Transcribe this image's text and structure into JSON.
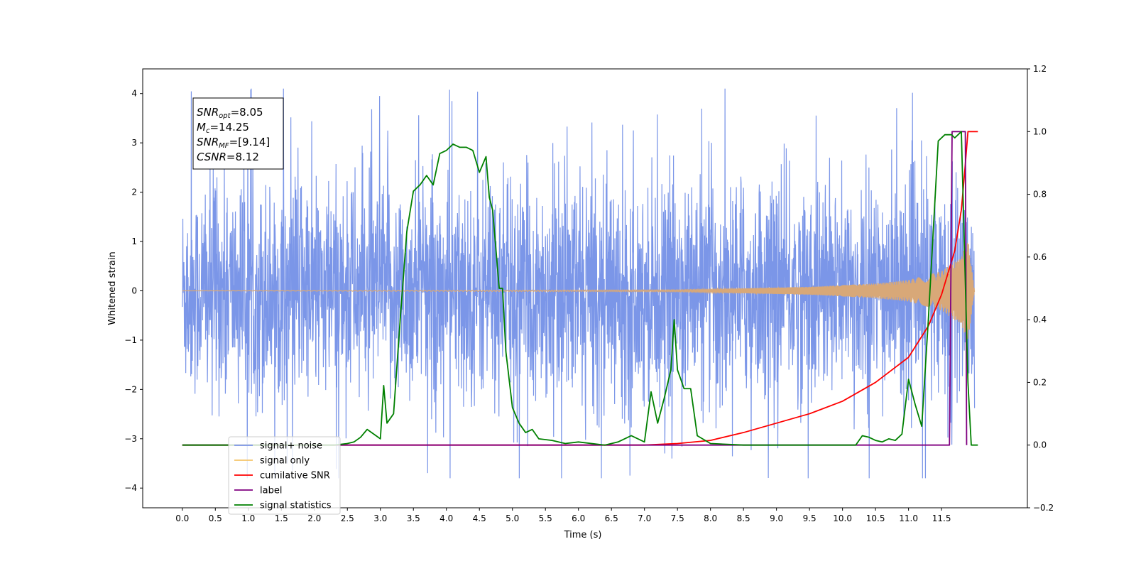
{
  "chart_data": {
    "type": "line",
    "xlabel": "Time (s)",
    "ylabel": "Whitened strain",
    "xlim": [
      -0.6,
      12.8
    ],
    "ylim": [
      -4.4,
      4.5
    ],
    "y2lim": [
      -0.2,
      1.2
    ],
    "x_ticks": [
      "0.0",
      "0.5",
      "1.0",
      "1.5",
      "2.0",
      "2.5",
      "3.0",
      "3.5",
      "4.0",
      "4.5",
      "5.0",
      "5.5",
      "6.0",
      "6.5",
      "7.0",
      "7.5",
      "8.0",
      "8.5",
      "9.0",
      "9.5",
      "10.0",
      "10.5",
      "11.0",
      "11.5"
    ],
    "y_ticks": [
      "4",
      "3",
      "2",
      "1",
      "0",
      "−1",
      "−2",
      "−3",
      "−4"
    ],
    "y_tick_values": [
      4,
      3,
      2,
      1,
      0,
      -1,
      -2,
      -3,
      -4
    ],
    "y2_ticks": [
      "1.2",
      "1.0",
      "0.8",
      "0.6",
      "0.4",
      "0.2",
      "0.0",
      "−0.2"
    ],
    "y2_tick_values": [
      1.2,
      1.0,
      0.8,
      0.6,
      0.4,
      0.2,
      0.0,
      -0.2
    ],
    "annotation": {
      "lines": [
        {
          "base": "SNR",
          "sub": "opt",
          "rest": "=8.05"
        },
        {
          "base": "M",
          "sub": "c",
          "rest": "=14.25"
        },
        {
          "base": "SNR",
          "sub": "MF",
          "rest": "=[9.14]"
        },
        {
          "base": "CSNR",
          "sub": "",
          "rest": "=8.12"
        }
      ]
    },
    "legend": {
      "position": "lower-left",
      "entries": [
        {
          "label": "signal+ noise",
          "color": "#7b96e8"
        },
        {
          "label": "signal only",
          "color": "#f5c56a"
        },
        {
          "label": "cumilative SNR",
          "color": "#ff0000"
        },
        {
          "label": "label",
          "color": "#800080"
        },
        {
          "label": "signal statistics",
          "color": "#008000"
        }
      ]
    },
    "series": [
      {
        "name": "signal+ noise",
        "axis": "left",
        "color": "#7b96e8",
        "x_range": [
          0.0,
          12.0
        ],
        "amplitude_typical": 1.3,
        "peak_max": 4.1,
        "peak_min": -3.8
      },
      {
        "name": "signal only",
        "axis": "left",
        "color": "#d8a878",
        "x_range": [
          0.0,
          12.0
        ],
        "envelope": [
          [
            0,
            0
          ],
          [
            7.5,
            0.02
          ],
          [
            8.5,
            0.05
          ],
          [
            9.5,
            0.08
          ],
          [
            10.5,
            0.15
          ],
          [
            11.0,
            0.22
          ],
          [
            11.5,
            0.4
          ],
          [
            11.8,
            0.7
          ],
          [
            11.9,
            1.05
          ],
          [
            12.0,
            0
          ]
        ]
      },
      {
        "name": "cumilative SNR",
        "axis": "right",
        "color": "#ff0000",
        "points": [
          [
            0,
            0
          ],
          [
            7.0,
            0
          ],
          [
            7.5,
            0.005
          ],
          [
            8.0,
            0.015
          ],
          [
            8.5,
            0.04
          ],
          [
            9.0,
            0.07
          ],
          [
            9.5,
            0.1
          ],
          [
            10.0,
            0.14
          ],
          [
            10.5,
            0.2
          ],
          [
            11.0,
            0.28
          ],
          [
            11.3,
            0.38
          ],
          [
            11.5,
            0.48
          ],
          [
            11.7,
            0.62
          ],
          [
            11.8,
            0.75
          ],
          [
            11.85,
            0.87
          ],
          [
            11.9,
            1.0
          ],
          [
            12.05,
            1.0
          ]
        ]
      },
      {
        "name": "label",
        "axis": "right",
        "color": "#800080",
        "points": [
          [
            0,
            0
          ],
          [
            11.62,
            0
          ],
          [
            11.66,
            1.0
          ],
          [
            11.86,
            1.0
          ],
          [
            11.88,
            0
          ]
        ]
      },
      {
        "name": "signal statistics",
        "axis": "right",
        "color": "#008000",
        "points": [
          [
            0,
            0
          ],
          [
            2.3,
            0
          ],
          [
            2.5,
            0.005
          ],
          [
            2.6,
            0.01
          ],
          [
            2.7,
            0.025
          ],
          [
            2.8,
            0.05
          ],
          [
            2.9,
            0.035
          ],
          [
            3.0,
            0.02
          ],
          [
            3.05,
            0.19
          ],
          [
            3.1,
            0.07
          ],
          [
            3.2,
            0.1
          ],
          [
            3.3,
            0.4
          ],
          [
            3.4,
            0.68
          ],
          [
            3.5,
            0.81
          ],
          [
            3.6,
            0.83
          ],
          [
            3.7,
            0.86
          ],
          [
            3.8,
            0.83
          ],
          [
            3.9,
            0.93
          ],
          [
            4.0,
            0.94
          ],
          [
            4.1,
            0.96
          ],
          [
            4.2,
            0.95
          ],
          [
            4.3,
            0.95
          ],
          [
            4.4,
            0.94
          ],
          [
            4.5,
            0.87
          ],
          [
            4.6,
            0.92
          ],
          [
            4.65,
            0.79
          ],
          [
            4.7,
            0.75
          ],
          [
            4.8,
            0.5
          ],
          [
            4.85,
            0.5
          ],
          [
            4.9,
            0.3
          ],
          [
            5.0,
            0.12
          ],
          [
            5.1,
            0.07
          ],
          [
            5.2,
            0.04
          ],
          [
            5.3,
            0.05
          ],
          [
            5.4,
            0.02
          ],
          [
            5.6,
            0.015
          ],
          [
            5.8,
            0.005
          ],
          [
            6.0,
            0.01
          ],
          [
            6.4,
            0.0
          ],
          [
            6.6,
            0.01
          ],
          [
            6.8,
            0.03
          ],
          [
            7.0,
            0.01
          ],
          [
            7.1,
            0.17
          ],
          [
            7.2,
            0.07
          ],
          [
            7.3,
            0.15
          ],
          [
            7.4,
            0.24
          ],
          [
            7.45,
            0.4
          ],
          [
            7.5,
            0.24
          ],
          [
            7.6,
            0.18
          ],
          [
            7.7,
            0.18
          ],
          [
            7.8,
            0.03
          ],
          [
            8.0,
            0.005
          ],
          [
            8.5,
            0.0
          ],
          [
            10.2,
            0.0
          ],
          [
            10.3,
            0.03
          ],
          [
            10.4,
            0.025
          ],
          [
            10.5,
            0.015
          ],
          [
            10.6,
            0.01
          ],
          [
            10.7,
            0.02
          ],
          [
            10.8,
            0.015
          ],
          [
            10.9,
            0.035
          ],
          [
            11.0,
            0.21
          ],
          [
            11.1,
            0.13
          ],
          [
            11.2,
            0.06
          ],
          [
            11.3,
            0.4
          ],
          [
            11.45,
            0.97
          ],
          [
            11.55,
            0.99
          ],
          [
            11.65,
            0.99
          ],
          [
            11.7,
            0.98
          ],
          [
            11.8,
            1.0
          ],
          [
            11.9,
            0.2
          ],
          [
            11.95,
            0.0
          ],
          [
            12.05,
            0.0
          ]
        ]
      }
    ]
  }
}
